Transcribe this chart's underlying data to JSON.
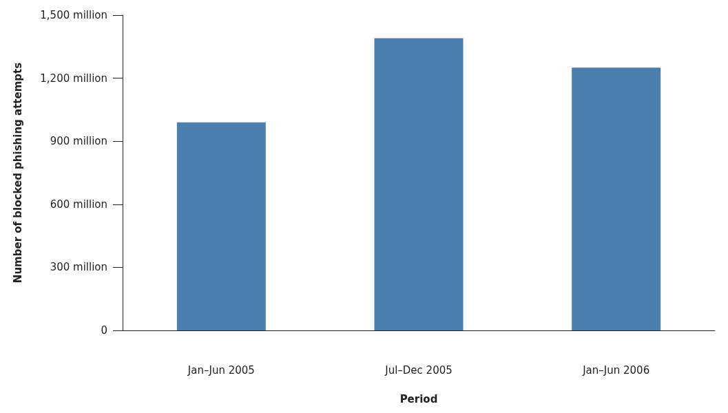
{
  "chart_data": {
    "type": "bar",
    "xlabel": "Period",
    "ylabel": "Number of blocked phishing attempts",
    "categories": [
      "Jan–Jun 2005",
      "Jul–Dec 2005",
      "Jan–Jun 2006"
    ],
    "values": [
      990,
      1390,
      1250
    ],
    "color": "#4a7fb0",
    "ylim": [
      0,
      1500
    ],
    "yticks": [
      {
        "value": 0,
        "label": "0"
      },
      {
        "value": 300,
        "label": "300 million"
      },
      {
        "value": 600,
        "label": "600 million"
      },
      {
        "value": 900,
        "label": "900 million"
      },
      {
        "value": 1200,
        "label": "1,200 million"
      },
      {
        "value": 1500,
        "label": "1,500 million"
      }
    ],
    "grid": false
  }
}
